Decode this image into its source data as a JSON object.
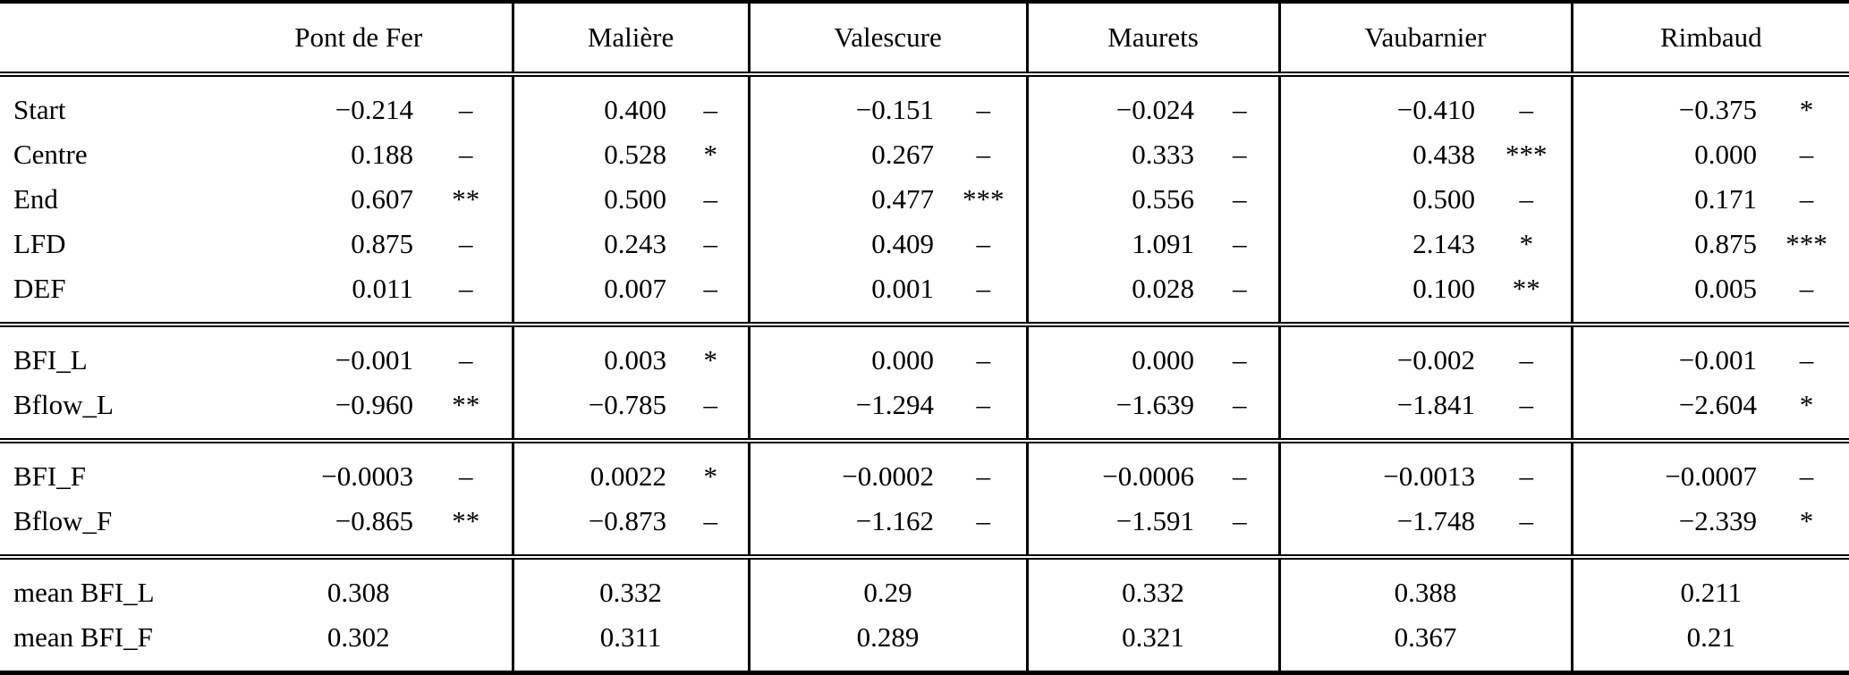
{
  "table": {
    "columns": [
      "Pont de Fer",
      "Malière",
      "Valescure",
      "Maurets",
      "Vaubarnier",
      "Rimbaud"
    ],
    "sections": [
      {
        "rows": [
          {
            "label": "Start",
            "cells": [
              {
                "v": "−0.214",
                "s": "–"
              },
              {
                "v": "0.400",
                "s": "–"
              },
              {
                "v": "−0.151",
                "s": "–"
              },
              {
                "v": "−0.024",
                "s": "–"
              },
              {
                "v": "−0.410",
                "s": "–"
              },
              {
                "v": "−0.375",
                "s": "*"
              }
            ]
          },
          {
            "label": "Centre",
            "cells": [
              {
                "v": "0.188",
                "s": "–"
              },
              {
                "v": "0.528",
                "s": "*"
              },
              {
                "v": "0.267",
                "s": "–"
              },
              {
                "v": "0.333",
                "s": "–"
              },
              {
                "v": "0.438",
                "s": "***"
              },
              {
                "v": "0.000",
                "s": "–"
              }
            ]
          },
          {
            "label": "End",
            "cells": [
              {
                "v": "0.607",
                "s": "**"
              },
              {
                "v": "0.500",
                "s": "–"
              },
              {
                "v": "0.477",
                "s": "***"
              },
              {
                "v": "0.556",
                "s": "–"
              },
              {
                "v": "0.500",
                "s": "–"
              },
              {
                "v": "0.171",
                "s": "–"
              }
            ]
          },
          {
            "label": "LFD",
            "cells": [
              {
                "v": "0.875",
                "s": "–"
              },
              {
                "v": "0.243",
                "s": "–"
              },
              {
                "v": "0.409",
                "s": "–"
              },
              {
                "v": "1.091",
                "s": "–"
              },
              {
                "v": "2.143",
                "s": "*"
              },
              {
                "v": "0.875",
                "s": "***"
              }
            ]
          },
          {
            "label": "DEF",
            "cells": [
              {
                "v": "0.011",
                "s": "–"
              },
              {
                "v": "0.007",
                "s": "–"
              },
              {
                "v": "0.001",
                "s": "–"
              },
              {
                "v": "0.028",
                "s": "–"
              },
              {
                "v": "0.100",
                "s": "**"
              },
              {
                "v": "0.005",
                "s": "–"
              }
            ]
          }
        ]
      },
      {
        "rows": [
          {
            "label": "BFI_L",
            "cells": [
              {
                "v": "−0.001",
                "s": "–"
              },
              {
                "v": "0.003",
                "s": "*"
              },
              {
                "v": "0.000",
                "s": "–"
              },
              {
                "v": "0.000",
                "s": "–"
              },
              {
                "v": "−0.002",
                "s": "–"
              },
              {
                "v": "−0.001",
                "s": "–"
              }
            ]
          },
          {
            "label": "Bflow_L",
            "cells": [
              {
                "v": "−0.960",
                "s": "**"
              },
              {
                "v": "−0.785",
                "s": "–"
              },
              {
                "v": "−1.294",
                "s": "–"
              },
              {
                "v": "−1.639",
                "s": "–"
              },
              {
                "v": "−1.841",
                "s": "–"
              },
              {
                "v": "−2.604",
                "s": "*"
              }
            ]
          }
        ]
      },
      {
        "rows": [
          {
            "label": "BFI_F",
            "cells": [
              {
                "v": "−0.0003",
                "s": "–"
              },
              {
                "v": "0.0022",
                "s": "*"
              },
              {
                "v": "−0.0002",
                "s": "–"
              },
              {
                "v": "−0.0006",
                "s": "–"
              },
              {
                "v": "−0.0013",
                "s": "–"
              },
              {
                "v": "−0.0007",
                "s": "–"
              }
            ]
          },
          {
            "label": "Bflow_F",
            "cells": [
              {
                "v": "−0.865",
                "s": "**"
              },
              {
                "v": "−0.873",
                "s": "–"
              },
              {
                "v": "−1.162",
                "s": "–"
              },
              {
                "v": "−1.591",
                "s": "–"
              },
              {
                "v": "−1.748",
                "s": "–"
              },
              {
                "v": "−2.339",
                "s": "*"
              }
            ]
          }
        ]
      },
      {
        "means": true,
        "rows": [
          {
            "label": "mean BFI_L",
            "cells": [
              {
                "v": "0.308"
              },
              {
                "v": "0.332"
              },
              {
                "v": "0.29"
              },
              {
                "v": "0.332"
              },
              {
                "v": "0.388"
              },
              {
                "v": "0.211"
              }
            ]
          },
          {
            "label": "mean BFI_F",
            "cells": [
              {
                "v": "0.302"
              },
              {
                "v": "0.311"
              },
              {
                "v": "0.289"
              },
              {
                "v": "0.321"
              },
              {
                "v": "0.367"
              },
              {
                "v": "0.21"
              }
            ]
          }
        ]
      }
    ]
  }
}
